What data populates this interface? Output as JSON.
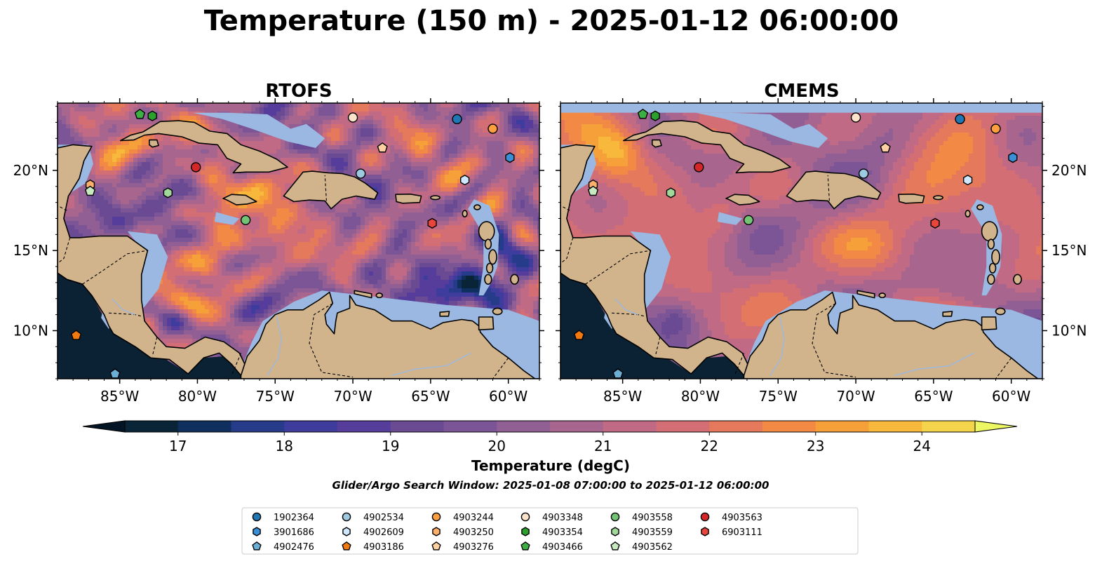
{
  "figure": {
    "title": "Temperature (150 m) - 2025-01-12 06:00:00",
    "search_window": "Glider/Argo Search Window: 2025-01-08 07:00:00 to 2025-01-12 06:00:00"
  },
  "panels": [
    {
      "id": "rtofs",
      "title": "RTOFS",
      "model": "rtofs"
    },
    {
      "id": "cmems",
      "title": "CMEMS",
      "model": "cmems"
    }
  ],
  "map": {
    "lon_range": [
      -89,
      -58
    ],
    "lat_range": [
      7,
      24.2
    ],
    "lon_ticks": [
      "85°W",
      "80°W",
      "75°W",
      "70°W",
      "65°W",
      "60°W"
    ],
    "lon_tick_values": [
      -85,
      -80,
      -75,
      -70,
      -65,
      -60
    ],
    "lat_ticks": [
      "10°N",
      "15°N",
      "20°N"
    ],
    "lat_tick_values": [
      10,
      15,
      20
    ],
    "colors": {
      "land": "#d2b48c",
      "shelf_nodata": "#9ab8e2",
      "deep_pacific": "#0b2235"
    }
  },
  "colorbar": {
    "label": "Temperature (degC)",
    "min": 16.5,
    "max": 24.5,
    "tick_labels": [
      "17",
      "18",
      "19",
      "20",
      "21",
      "22",
      "23",
      "24"
    ],
    "tick_values": [
      17,
      18,
      19,
      20,
      21,
      22,
      23,
      24
    ],
    "colors": [
      "#092437",
      "#0f2f5e",
      "#263c8a",
      "#3e3c9c",
      "#563d9c",
      "#6b4a94",
      "#7b5595",
      "#915f94",
      "#a8668f",
      "#c06a86",
      "#d26e74",
      "#e4795b",
      "#f28a45",
      "#f6a03a",
      "#f7b83c",
      "#f4d44a"
    ],
    "under_color": "#031425",
    "over_color": "#edf763"
  },
  "legend": {
    "entries": [
      {
        "id": "1902364",
        "marker": "circle",
        "color": "#1f77b4",
        "lon": -63.3,
        "lat": 23.2
      },
      {
        "id": "3901686",
        "marker": "hexagon",
        "color": "#3a8fd6",
        "lon": -59.9,
        "lat": 20.8
      },
      {
        "id": "4902476",
        "marker": "pentagon",
        "color": "#6baed6",
        "lon": -85.3,
        "lat": 7.3
      },
      {
        "id": "4902534",
        "marker": "circle",
        "color": "#9ecae1",
        "lon": -69.5,
        "lat": 19.8
      },
      {
        "id": "4902609",
        "marker": "hexagon",
        "color": "#cfe8ff",
        "lon": -62.8,
        "lat": 19.4
      },
      {
        "id": "4903186",
        "marker": "pentagon",
        "color": "#f07a10",
        "lon": -87.8,
        "lat": 9.7
      },
      {
        "id": "4903244",
        "marker": "circle",
        "color": "#fd9f3e",
        "lon": -61.0,
        "lat": 22.6
      },
      {
        "id": "4903250",
        "marker": "hexagon",
        "color": "#fdb06b",
        "lon": -86.9,
        "lat": 19.1
      },
      {
        "id": "4903276",
        "marker": "pentagon",
        "color": "#fdd0a2",
        "lon": -68.1,
        "lat": 21.4
      },
      {
        "id": "4903348",
        "marker": "circle",
        "color": "#fde3cc",
        "lon": -70.0,
        "lat": 23.3
      },
      {
        "id": "4903354",
        "marker": "hexagon",
        "color": "#2ca02c",
        "lon": -82.9,
        "lat": 23.4
      },
      {
        "id": "4903466",
        "marker": "pentagon",
        "color": "#3cb043",
        "lon": -83.7,
        "lat": 23.5
      },
      {
        "id": "4903558",
        "marker": "circle",
        "color": "#74c476",
        "lon": -76.9,
        "lat": 16.9
      },
      {
        "id": "4903559",
        "marker": "hexagon",
        "color": "#a1d99b",
        "lon": -81.9,
        "lat": 18.6
      },
      {
        "id": "4903562",
        "marker": "pentagon",
        "color": "#c7e9c0",
        "lon": -86.9,
        "lat": 18.7
      },
      {
        "id": "4903563",
        "marker": "circle",
        "color": "#d62728",
        "lon": -80.1,
        "lat": 20.2
      },
      {
        "id": "6903111",
        "marker": "hexagon",
        "color": "#e8453c",
        "lon": -64.9,
        "lat": 16.7
      }
    ]
  }
}
